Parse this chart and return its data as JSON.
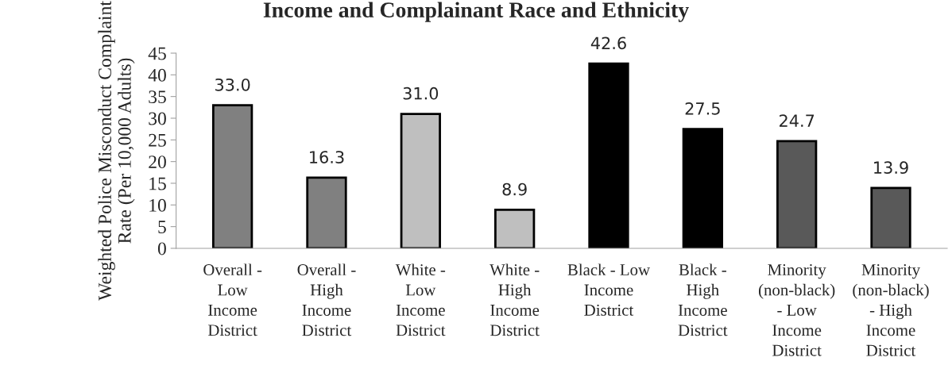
{
  "chart_data": {
    "type": "bar",
    "title": "Income and Complainant Race and Ethnicity",
    "ylabel": "Weighted Police Misconduct Complaint\nRate (Per 10,000 Adults)",
    "categories": [
      "Overall -\nLow\nIncome\nDistrict",
      "Overall -\nHigh\nIncome\nDistrict",
      "White -\nLow\nIncome\nDistrict",
      "White -\nHigh\nIncome\nDistrict",
      "Black - Low\nIncome\nDistrict",
      "Black -\nHigh\nIncome\nDistrict",
      "Minority\n(non-black)\n- Low\nIncome\nDistrict",
      "Minority\n(non-black)\n- High\nIncome\nDistrict"
    ],
    "values": [
      33.0,
      16.3,
      31.0,
      8.9,
      42.6,
      27.5,
      24.7,
      13.9
    ],
    "colors": [
      "#808080",
      "#808080",
      "#bfbfbf",
      "#bfbfbf",
      "#000000",
      "#000000",
      "#595959",
      "#595959"
    ],
    "value_labels": [
      "33.0",
      "16.3",
      "31.0",
      "8.9",
      "42.6",
      "27.5",
      "24.7",
      "13.9"
    ],
    "ylim": [
      0,
      45
    ],
    "yticks": [
      0,
      5,
      10,
      15,
      20,
      25,
      30,
      35,
      40,
      45
    ],
    "grid": false,
    "legend": false
  }
}
